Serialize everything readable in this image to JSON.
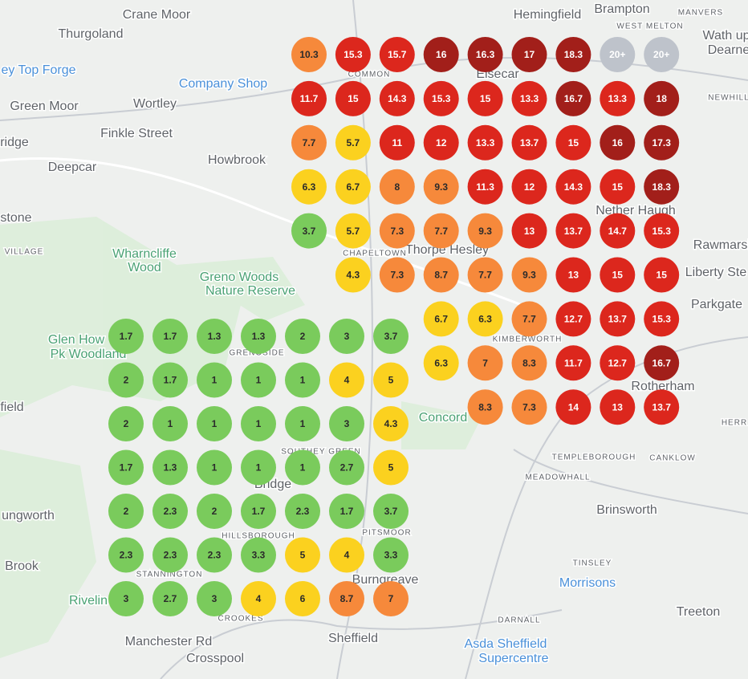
{
  "map": {
    "places": [
      "Crane Moor",
      "Thurgoland",
      "Hemingfield",
      "Brampton",
      "MANVERS",
      "WEST MELTON",
      "Wath up",
      "Dearne",
      "ey Top Forge",
      "Company Shop",
      "Green Moor",
      "Wortley",
      "COMMON",
      "Elsecar",
      "NEWHILL",
      "Finkle Street",
      "ridge",
      "Howbrook",
      "Deepcar",
      "Nether Haugh",
      "stone",
      "Rawmarsh",
      "VILLAGE",
      "Wharncliffe",
      "Wood",
      "CHAPELTOWN",
      "Thorpe Hesley",
      "Greno Woods",
      "Nature Reserve",
      "Liberty Ste",
      "Parkgate",
      "Glen How",
      "Pk Woodland",
      "KIMBERWORTH",
      "GRENOSIDE",
      "Rotherham",
      "field",
      "Concord",
      "HERR",
      "SOUTHEY GREEN",
      "TEMPLEBOROUGH",
      "CANKLOW",
      "Bridge",
      "MEADOWHALL",
      "PITSMOOR",
      "HILLSBOROUGH",
      "ungworth",
      "Brinsworth",
      "Brook",
      "STANNINGTON",
      "Burngreave",
      "Morrisons",
      "TINSLEY",
      "Treeton",
      "Rivelin",
      "CROOKES",
      "DARNALL",
      "Sheffield",
      "Asda Sheffield",
      "Supercentre",
      "Manchester Rd",
      "Crosspool"
    ]
  },
  "palette": {
    "g": "#7acb5c",
    "y": "#fbd11f",
    "o": "#f6893b",
    "r": "#dc271d",
    "d": "#a21f1a",
    "x": "#bec3cb"
  },
  "grids": [
    {
      "labels": [
        [
          "10.3",
          "15.3",
          "15.7",
          "16",
          "16.3",
          "17",
          "18.3",
          "20+",
          "20+"
        ],
        [
          "11.7",
          "15",
          "14.3",
          "15.3",
          "15",
          "13.3",
          "16.7",
          "13.3",
          "18"
        ],
        [
          "7.7",
          "5.7",
          "11",
          "12",
          "13.3",
          "13.7",
          "15",
          "16",
          "17.3"
        ],
        [
          "6.3",
          "6.7",
          "8",
          "9.3",
          "11.3",
          "12",
          "14.3",
          "15",
          "18.3"
        ],
        [
          "3.7",
          "5.7",
          "7.3",
          "7.7",
          "9.3",
          "13",
          "13.7",
          "14.7",
          "15.3"
        ],
        [
          null,
          "4.3",
          "7.3",
          "8.7",
          "7.7",
          "9.3",
          "13",
          "15",
          "15"
        ],
        [
          null,
          null,
          null,
          "6.7",
          "6.3",
          "7.7",
          "12.7",
          "13.7",
          "15.3"
        ],
        [
          null,
          null,
          null,
          "6.3",
          "7",
          "8.3",
          "11.7",
          "12.7",
          "16.7"
        ],
        [
          null,
          null,
          null,
          null,
          "8.3",
          "7.3",
          "14",
          "13",
          "13.7"
        ]
      ],
      "colors": [
        [
          "o",
          "r",
          "r",
          "d",
          "d",
          "d",
          "d",
          "x",
          "x"
        ],
        [
          "r",
          "r",
          "r",
          "r",
          "r",
          "r",
          "d",
          "r",
          "d"
        ],
        [
          "o",
          "y",
          "r",
          "r",
          "r",
          "r",
          "r",
          "d",
          "d"
        ],
        [
          "y",
          "y",
          "o",
          "o",
          "r",
          "r",
          "r",
          "r",
          "d"
        ],
        [
          "g",
          "y",
          "o",
          "o",
          "o",
          "r",
          "r",
          "r",
          "r"
        ],
        [
          null,
          "y",
          "o",
          "o",
          "o",
          "o",
          "r",
          "r",
          "r"
        ],
        [
          null,
          null,
          null,
          "y",
          "y",
          "o",
          "r",
          "r",
          "r"
        ],
        [
          null,
          null,
          null,
          "y",
          "o",
          "o",
          "r",
          "r",
          "d"
        ],
        [
          null,
          null,
          null,
          null,
          "o",
          "o",
          "r",
          "r",
          "r"
        ]
      ]
    },
    {
      "labels": [
        [
          "1.7",
          "1.7",
          "1.3",
          "1.3",
          "2",
          "3",
          "3.7"
        ],
        [
          "2",
          "1.7",
          "1",
          "1",
          "1",
          "4",
          "5"
        ],
        [
          "2",
          "1",
          "1",
          "1",
          "1",
          "3",
          "4.3"
        ],
        [
          "1.7",
          "1.3",
          "1",
          "1",
          "1",
          "2.7",
          "5"
        ],
        [
          "2",
          "2.3",
          "2",
          "1.7",
          "2.3",
          "1.7",
          "3.7"
        ],
        [
          "2.3",
          "2.3",
          "2.3",
          "3.3",
          "5",
          "4",
          "3.3"
        ],
        [
          "3",
          "2.7",
          "3",
          "4",
          "6",
          "8.7",
          "7"
        ]
      ],
      "colors": [
        [
          "g",
          "g",
          "g",
          "g",
          "g",
          "g",
          "g"
        ],
        [
          "g",
          "g",
          "g",
          "g",
          "g",
          "y",
          "y"
        ],
        [
          "g",
          "g",
          "g",
          "g",
          "g",
          "g",
          "y"
        ],
        [
          "g",
          "g",
          "g",
          "g",
          "g",
          "g",
          "y"
        ],
        [
          "g",
          "g",
          "g",
          "g",
          "g",
          "g",
          "g"
        ],
        [
          "g",
          "g",
          "g",
          "g",
          "y",
          "y",
          "g"
        ],
        [
          "g",
          "g",
          "g",
          "y",
          "y",
          "o",
          "o"
        ]
      ]
    }
  ]
}
